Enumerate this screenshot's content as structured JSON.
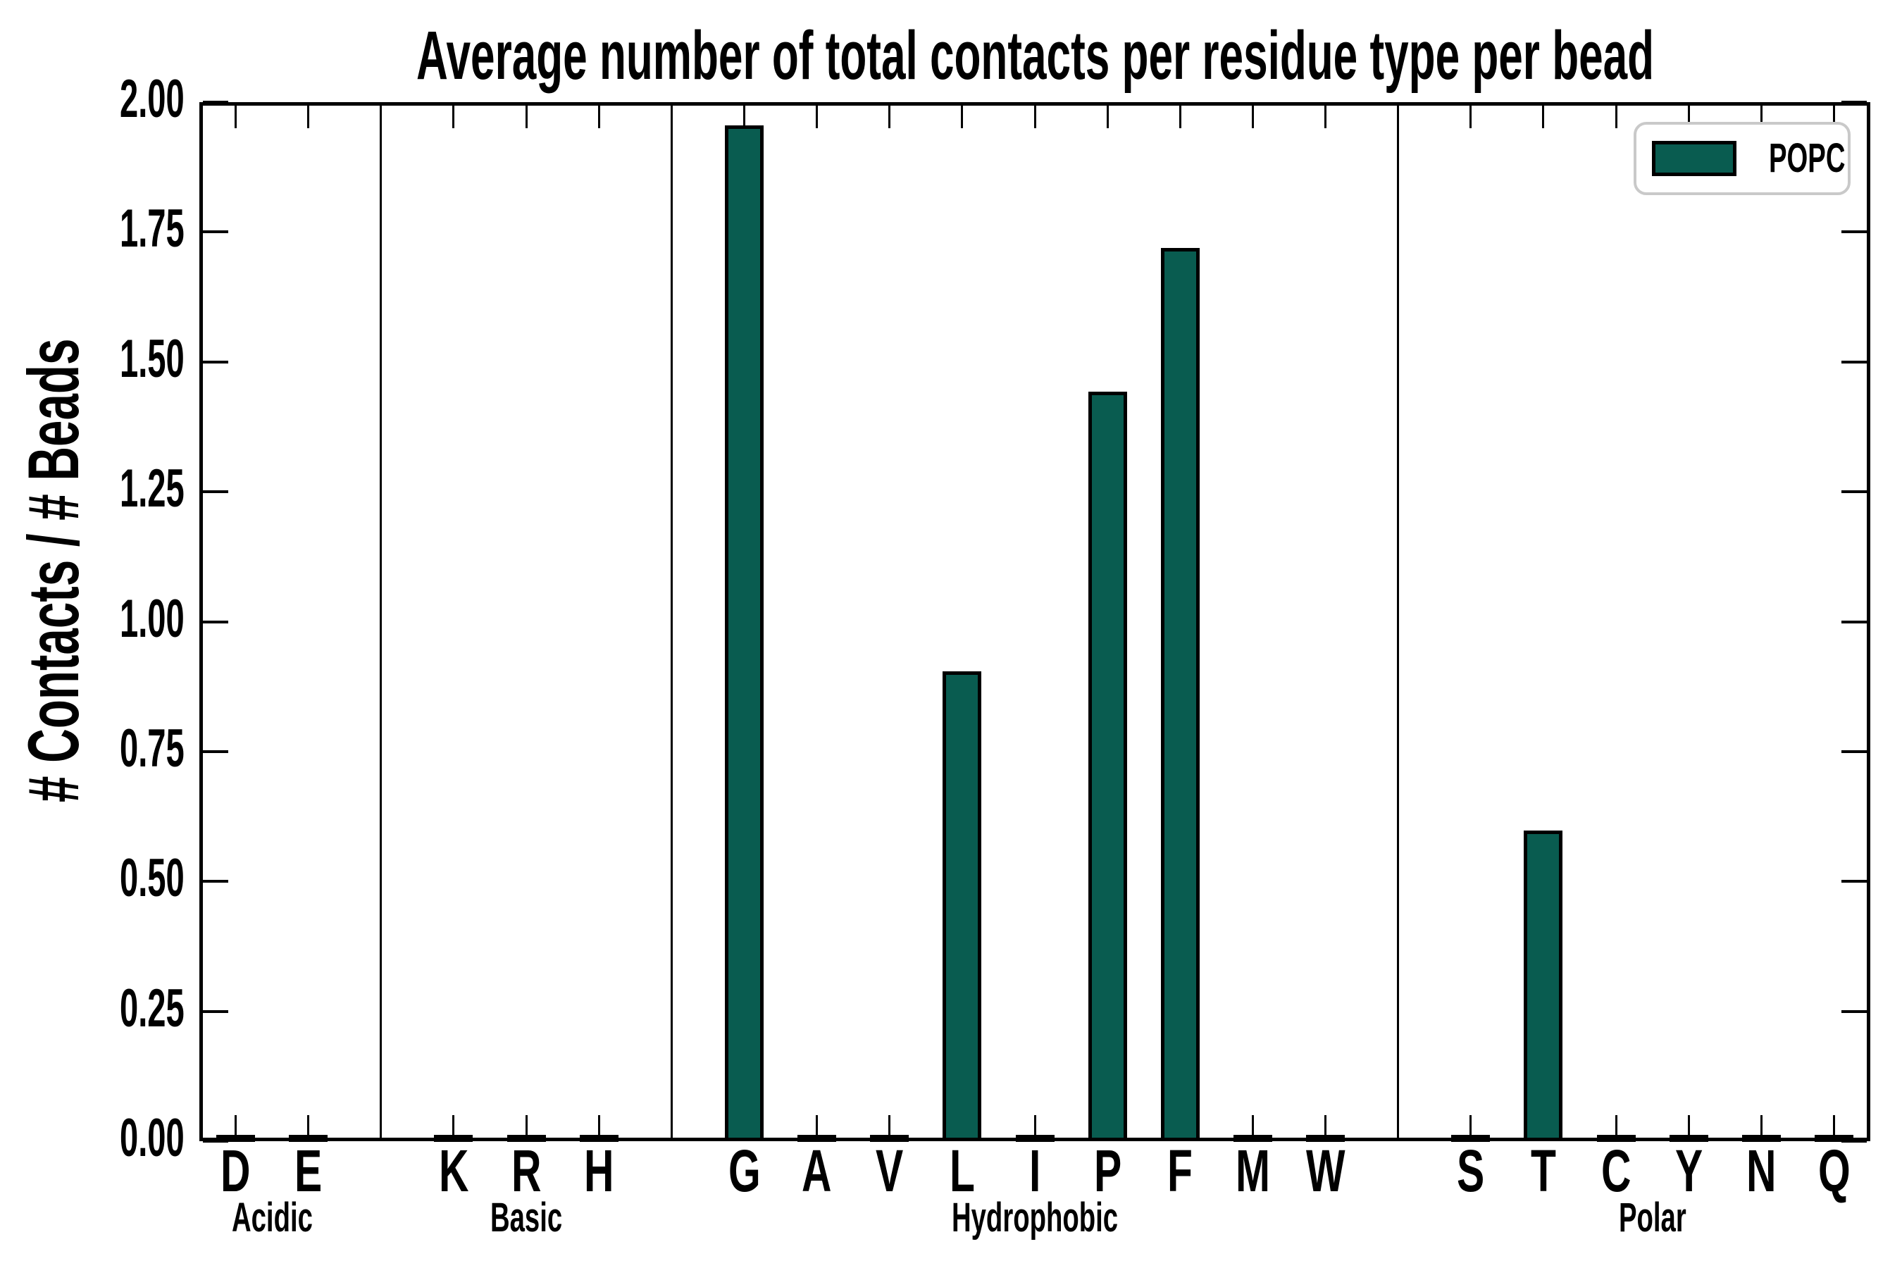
{
  "title": "Average number of total contacts per residue type per bead",
  "axes": {
    "ylabel": "# Contacts / # Beads"
  },
  "legend": {
    "label": "POPC"
  },
  "colors": {
    "bar_fill": "#095c50",
    "bar_edge": "#000000",
    "axis": "#000000",
    "legend_border": "#c9c9c9",
    "background": "#ffffff",
    "text": "#000000"
  },
  "chart_data": {
    "type": "bar",
    "title": "Average number of total contacts per residue type per bead",
    "xlabel": "",
    "ylabel": "# Contacts / # Beads",
    "ylim": [
      0,
      2
    ],
    "ytick_step": 0.25,
    "ytick_labels": [
      "0.00",
      "0.25",
      "0.50",
      "0.75",
      "1.00",
      "1.25",
      "1.50",
      "1.75",
      "2.00"
    ],
    "grid": false,
    "legend_position": "upper right",
    "series": [
      {
        "name": "POPC",
        "color": "#095c50"
      }
    ],
    "groups": [
      {
        "label": "Acidic",
        "categories": [
          "D",
          "E"
        ],
        "values": [
          0.005,
          0.005
        ]
      },
      {
        "label": "Basic",
        "categories": [
          "K",
          "R",
          "H"
        ],
        "values": [
          0.005,
          0.005,
          0.005
        ]
      },
      {
        "label": "Hydrophobic",
        "categories": [
          "G",
          "A",
          "V",
          "L",
          "I",
          "P",
          "F",
          "M",
          "W"
        ],
        "values": [
          1.955,
          0.005,
          0.005,
          0.905,
          0.005,
          1.443,
          1.719,
          0.005,
          0.005
        ]
      },
      {
        "label": "Polar",
        "categories": [
          "S",
          "T",
          "C",
          "Y",
          "N",
          "Q"
        ],
        "values": [
          0.005,
          0.598,
          0.005,
          0.005,
          0.005,
          0.005
        ]
      }
    ],
    "bar_width_fraction": 0.53,
    "annotations": []
  }
}
